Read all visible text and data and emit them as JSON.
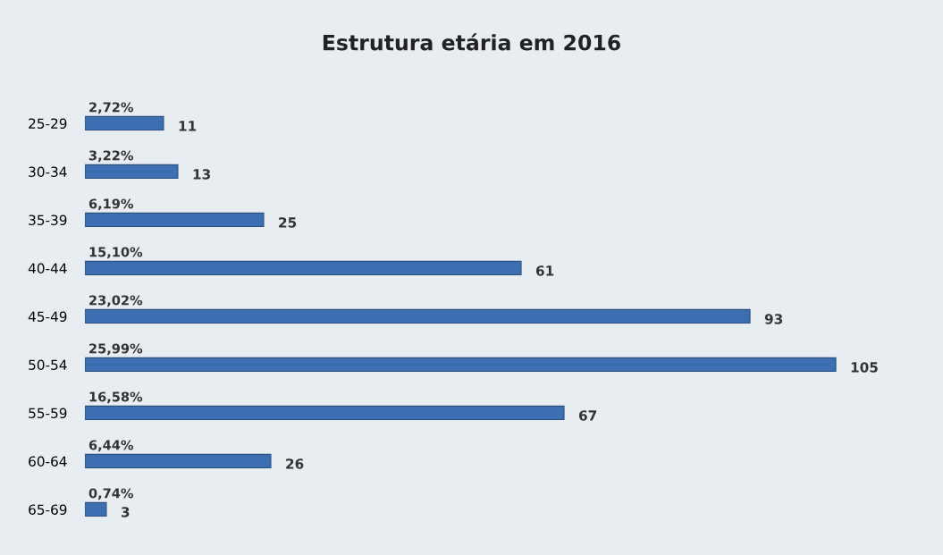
{
  "chart_data": {
    "type": "bar",
    "orientation": "horizontal",
    "title": "Estrutura etária em 2016",
    "categories": [
      "25-29",
      "30-34",
      "35-39",
      "40-44",
      "45-49",
      "50-54",
      "55-59",
      "60-64",
      "65-69"
    ],
    "series": [
      {
        "color": "#3b6fb2",
        "values": [
          11,
          13,
          25,
          61,
          93,
          105,
          67,
          26,
          3
        ]
      }
    ],
    "annotations": [
      "2,72%",
      "3,22%",
      "6,19%",
      "15,10%",
      "23,02%",
      "25,99%",
      "16,58%",
      "6,44%",
      "0,74%"
    ],
    "data_labels": true,
    "tick_labels": "y",
    "grid": false,
    "legend": false
  }
}
